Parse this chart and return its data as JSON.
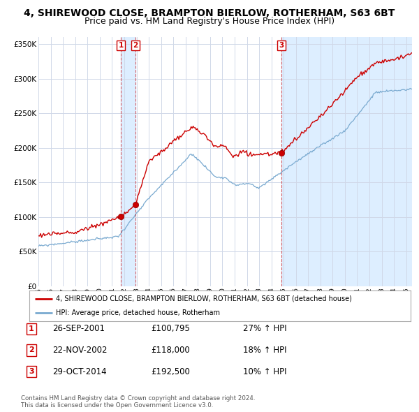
{
  "title_line1": "4, SHIREWOOD CLOSE, BRAMPTON BIERLOW, ROTHERHAM, S63 6BT",
  "title_line2": "Price paid vs. HM Land Registry's House Price Index (HPI)",
  "title_fontsize": 10,
  "subtitle_fontsize": 9,
  "background_color": "#ffffff",
  "plot_bg_color": "#ffffff",
  "grid_color": "#d0d8e8",
  "red_color": "#cc0000",
  "blue_color": "#7aaad0",
  "shade_color": "#ddeeff",
  "sale1_date": 2001.73,
  "sale1_price": 100795,
  "sale2_date": 2002.9,
  "sale2_price": 118000,
  "sale3_date": 2014.83,
  "sale3_price": 192500,
  "legend_entries": [
    "4, SHIREWOOD CLOSE, BRAMPTON BIERLOW, ROTHERHAM, S63 6BT (detached house)",
    "HPI: Average price, detached house, Rotherham"
  ],
  "table_rows": [
    [
      "1",
      "26-SEP-2001",
      "£100,795",
      "27% ↑ HPI"
    ],
    [
      "2",
      "22-NOV-2002",
      "£118,000",
      "18% ↑ HPI"
    ],
    [
      "3",
      "29-OCT-2014",
      "£192,500",
      "10% ↑ HPI"
    ]
  ],
  "footnote": "Contains HM Land Registry data © Crown copyright and database right 2024.\nThis data is licensed under the Open Government Licence v3.0.",
  "ylim": [
    0,
    360000
  ],
  "yticks": [
    0,
    50000,
    100000,
    150000,
    200000,
    250000,
    300000,
    350000
  ],
  "xmin": 1995.0,
  "xmax": 2025.5
}
